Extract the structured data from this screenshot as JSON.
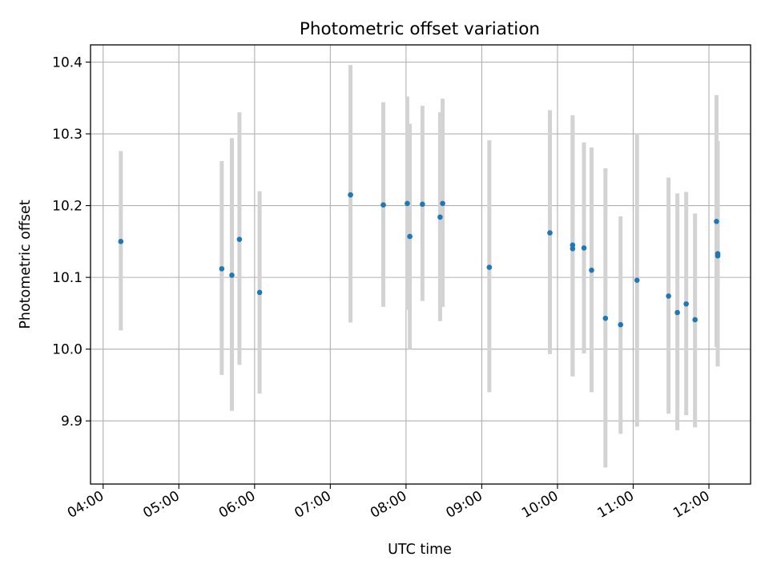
{
  "chart_data": {
    "type": "scatter",
    "title": "Photometric offset variation",
    "xlabel": "UTC time",
    "ylabel": "Photometric offset",
    "x_ticks": [
      "04:00",
      "05:00",
      "06:00",
      "07:00",
      "08:00",
      "09:00",
      "10:00",
      "11:00",
      "12:00"
    ],
    "x_tick_hours": [
      4,
      5,
      6,
      7,
      8,
      9,
      10,
      11,
      12
    ],
    "y_ticks": [
      "9.9",
      "10.0",
      "10.1",
      "10.2",
      "10.3",
      "10.4"
    ],
    "y_tick_values": [
      9.9,
      10.0,
      10.1,
      10.2,
      10.3,
      10.4
    ],
    "xlim": [
      "03:50",
      "12:33"
    ],
    "ylim": [
      9.812,
      10.424
    ],
    "grid": true,
    "marker_color": "#1f77b4",
    "errorbar_color": "#d3d3d3",
    "points": [
      {
        "x": "04:14",
        "y": 10.15,
        "low": 10.026,
        "high": 10.276
      },
      {
        "x": "05:34",
        "y": 10.112,
        "low": 9.964,
        "high": 10.262
      },
      {
        "x": "05:42",
        "y": 10.103,
        "low": 9.914,
        "high": 10.294
      },
      {
        "x": "05:48",
        "y": 10.153,
        "low": 9.978,
        "high": 10.33
      },
      {
        "x": "06:04",
        "y": 10.079,
        "low": 9.938,
        "high": 10.22
      },
      {
        "x": "07:16",
        "y": 10.215,
        "low": 10.037,
        "high": 10.396
      },
      {
        "x": "07:42",
        "y": 10.201,
        "low": 10.059,
        "high": 10.344
      },
      {
        "x": "08:01",
        "y": 10.203,
        "low": 10.055,
        "high": 10.352
      },
      {
        "x": "08:03",
        "y": 10.157,
        "low": 10.0,
        "high": 10.314
      },
      {
        "x": "08:13",
        "y": 10.202,
        "low": 10.067,
        "high": 10.339
      },
      {
        "x": "08:27",
        "y": 10.184,
        "low": 10.039,
        "high": 10.33
      },
      {
        "x": "08:29",
        "y": 10.203,
        "low": 10.059,
        "high": 10.349
      },
      {
        "x": "09:06",
        "y": 10.114,
        "low": 9.94,
        "high": 10.291
      },
      {
        "x": "09:54",
        "y": 10.162,
        "low": 9.993,
        "high": 10.333
      },
      {
        "x": "10:12",
        "y": 10.145,
        "low": 9.962,
        "high": 10.326
      },
      {
        "x": "10:12",
        "y": 10.14,
        "low": 9.962,
        "high": 10.32
      },
      {
        "x": "10:21",
        "y": 10.141,
        "low": 9.994,
        "high": 10.288
      },
      {
        "x": "10:27",
        "y": 10.11,
        "low": 9.94,
        "high": 10.281
      },
      {
        "x": "10:38",
        "y": 10.043,
        "low": 9.835,
        "high": 10.252
      },
      {
        "x": "10:50",
        "y": 10.034,
        "low": 9.882,
        "high": 10.185
      },
      {
        "x": "11:03",
        "y": 10.096,
        "low": 9.892,
        "high": 10.3
      },
      {
        "x": "11:28",
        "y": 10.074,
        "low": 9.91,
        "high": 10.239
      },
      {
        "x": "11:35",
        "y": 10.051,
        "low": 9.887,
        "high": 10.217
      },
      {
        "x": "11:42",
        "y": 10.063,
        "low": 9.908,
        "high": 10.219
      },
      {
        "x": "11:49",
        "y": 10.041,
        "low": 9.891,
        "high": 10.189
      },
      {
        "x": "12:06",
        "y": 10.178,
        "low": 10.003,
        "high": 10.354
      },
      {
        "x": "12:07",
        "y": 10.133,
        "low": 9.976,
        "high": 10.29
      },
      {
        "x": "12:07",
        "y": 10.13,
        "low": 9.976,
        "high": 10.285
      }
    ]
  }
}
